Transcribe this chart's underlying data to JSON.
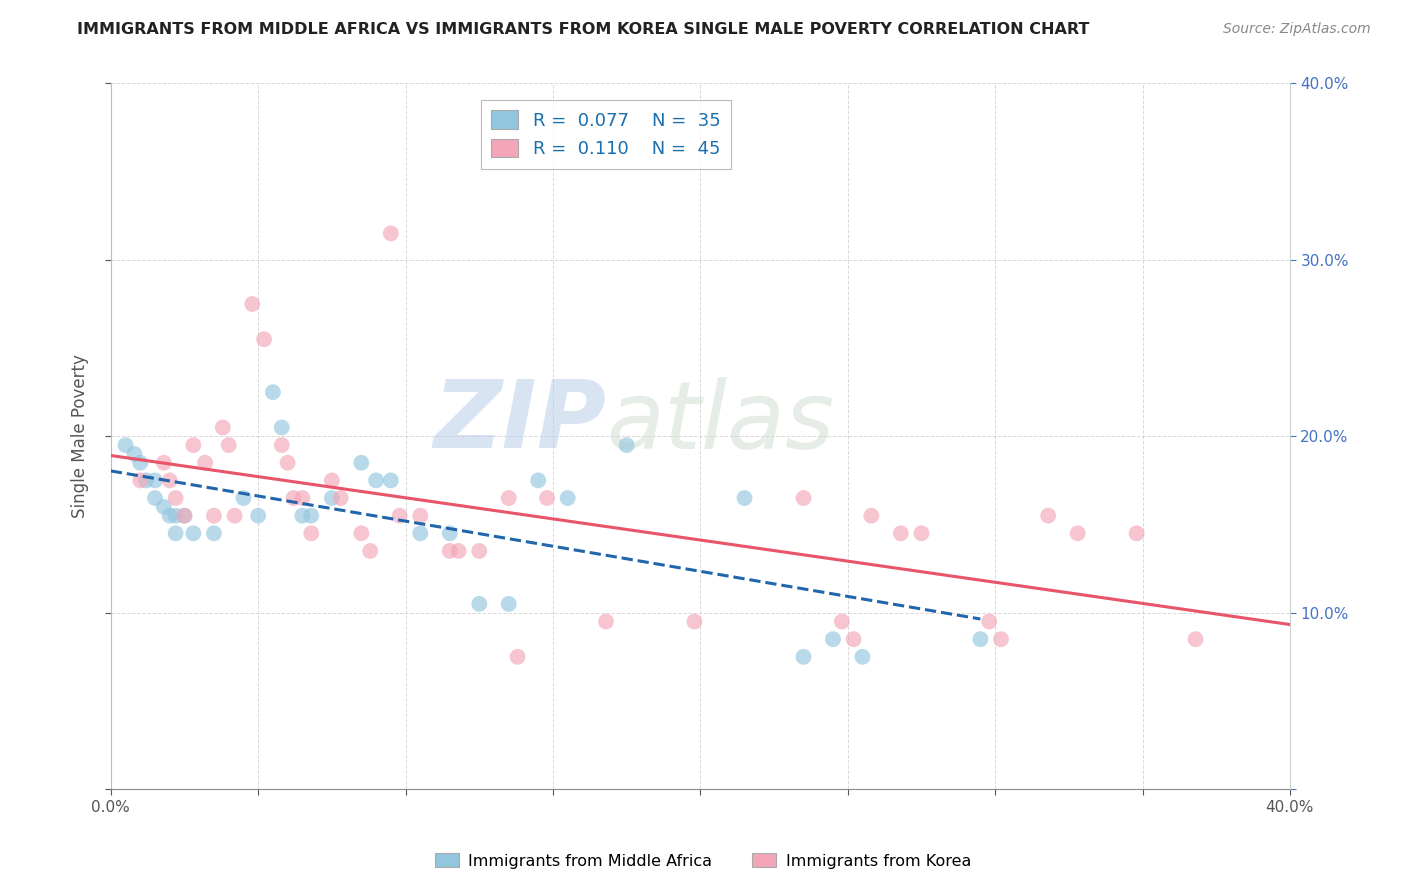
{
  "title": "IMMIGRANTS FROM MIDDLE AFRICA VS IMMIGRANTS FROM KOREA SINGLE MALE POVERTY CORRELATION CHART",
  "source": "Source: ZipAtlas.com",
  "ylabel": "Single Male Poverty",
  "xlim": [
    0.0,
    0.4
  ],
  "ylim": [
    0.0,
    0.4
  ],
  "legend_r1": "0.077",
  "legend_n1": "35",
  "legend_r2": "0.110",
  "legend_n2": "45",
  "blue_color": "#92c5de",
  "pink_color": "#f4a6b8",
  "blue_line_color": "#2166ac",
  "pink_line_color": "#e8546a",
  "blue_scatter": [
    [
      0.005,
      0.195
    ],
    [
      0.008,
      0.19
    ],
    [
      0.01,
      0.185
    ],
    [
      0.012,
      0.175
    ],
    [
      0.015,
      0.175
    ],
    [
      0.015,
      0.165
    ],
    [
      0.018,
      0.16
    ],
    [
      0.02,
      0.155
    ],
    [
      0.022,
      0.155
    ],
    [
      0.025,
      0.155
    ],
    [
      0.022,
      0.145
    ],
    [
      0.028,
      0.145
    ],
    [
      0.035,
      0.145
    ],
    [
      0.045,
      0.165
    ],
    [
      0.05,
      0.155
    ],
    [
      0.055,
      0.225
    ],
    [
      0.058,
      0.205
    ],
    [
      0.065,
      0.155
    ],
    [
      0.068,
      0.155
    ],
    [
      0.075,
      0.165
    ],
    [
      0.085,
      0.185
    ],
    [
      0.09,
      0.175
    ],
    [
      0.095,
      0.175
    ],
    [
      0.105,
      0.145
    ],
    [
      0.115,
      0.145
    ],
    [
      0.125,
      0.105
    ],
    [
      0.135,
      0.105
    ],
    [
      0.145,
      0.175
    ],
    [
      0.155,
      0.165
    ],
    [
      0.175,
      0.195
    ],
    [
      0.215,
      0.165
    ],
    [
      0.235,
      0.075
    ],
    [
      0.245,
      0.085
    ],
    [
      0.255,
      0.075
    ],
    [
      0.295,
      0.085
    ]
  ],
  "pink_scatter": [
    [
      0.01,
      0.175
    ],
    [
      0.018,
      0.185
    ],
    [
      0.02,
      0.175
    ],
    [
      0.022,
      0.165
    ],
    [
      0.025,
      0.155
    ],
    [
      0.028,
      0.195
    ],
    [
      0.032,
      0.185
    ],
    [
      0.035,
      0.155
    ],
    [
      0.038,
      0.205
    ],
    [
      0.04,
      0.195
    ],
    [
      0.042,
      0.155
    ],
    [
      0.048,
      0.275
    ],
    [
      0.052,
      0.255
    ],
    [
      0.058,
      0.195
    ],
    [
      0.06,
      0.185
    ],
    [
      0.062,
      0.165
    ],
    [
      0.065,
      0.165
    ],
    [
      0.068,
      0.145
    ],
    [
      0.075,
      0.175
    ],
    [
      0.078,
      0.165
    ],
    [
      0.085,
      0.145
    ],
    [
      0.088,
      0.135
    ],
    [
      0.095,
      0.315
    ],
    [
      0.098,
      0.155
    ],
    [
      0.105,
      0.155
    ],
    [
      0.115,
      0.135
    ],
    [
      0.118,
      0.135
    ],
    [
      0.125,
      0.135
    ],
    [
      0.135,
      0.165
    ],
    [
      0.138,
      0.075
    ],
    [
      0.148,
      0.165
    ],
    [
      0.168,
      0.095
    ],
    [
      0.198,
      0.095
    ],
    [
      0.235,
      0.165
    ],
    [
      0.248,
      0.095
    ],
    [
      0.252,
      0.085
    ],
    [
      0.258,
      0.155
    ],
    [
      0.268,
      0.145
    ],
    [
      0.275,
      0.145
    ],
    [
      0.298,
      0.095
    ],
    [
      0.302,
      0.085
    ],
    [
      0.318,
      0.155
    ],
    [
      0.328,
      0.145
    ],
    [
      0.348,
      0.145
    ],
    [
      0.368,
      0.085
    ]
  ],
  "background_color": "#ffffff",
  "grid_color": "#d0d0d0",
  "watermark_zip": "ZIP",
  "watermark_atlas": "atlas",
  "watermark_color": "#d8e4f0",
  "right_tick_color": "#4472c4",
  "title_color": "#222222",
  "source_color": "#888888",
  "label_color": "#555555"
}
